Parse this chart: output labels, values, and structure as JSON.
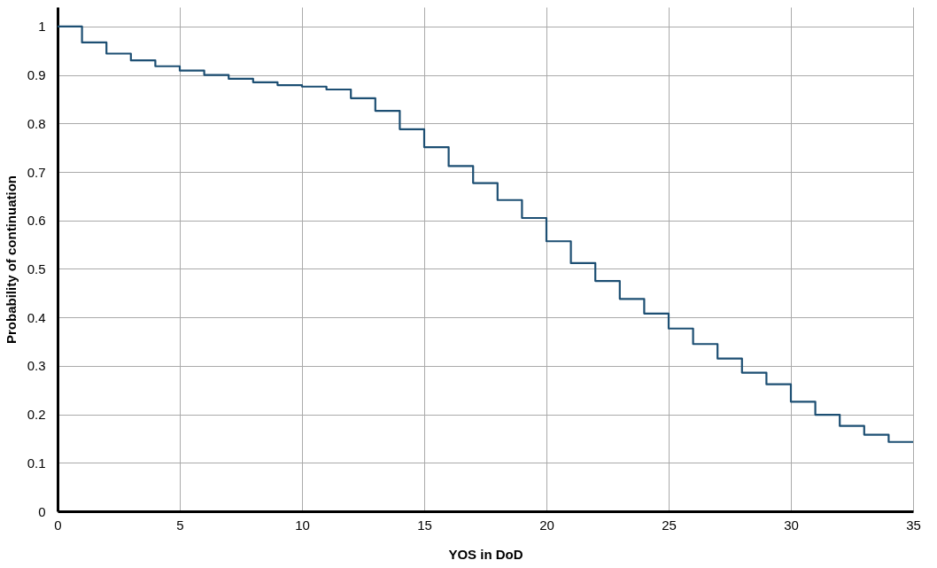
{
  "chart_data": {
    "type": "step",
    "xlabel": "YOS in DoD",
    "ylabel": "Probability of continuation",
    "x": [
      0,
      1,
      2,
      3,
      4,
      5,
      6,
      7,
      8,
      9,
      10,
      11,
      12,
      13,
      14,
      15,
      16,
      17,
      18,
      19,
      20,
      21,
      22,
      23,
      24,
      25,
      26,
      27,
      28,
      29,
      30,
      31,
      32,
      33,
      34,
      35
    ],
    "series": [
      {
        "color": "#1d4f73",
        "values": [
          1.0,
          0.967,
          0.944,
          0.93,
          0.918,
          0.909,
          0.9,
          0.892,
          0.885,
          0.879,
          0.876,
          0.87,
          0.852,
          0.826,
          0.788,
          0.751,
          0.712,
          0.677,
          0.642,
          0.605,
          0.557,
          0.512,
          0.475,
          0.438,
          0.408,
          0.377,
          0.345,
          0.315,
          0.286,
          0.262,
          0.226,
          0.199,
          0.176,
          0.158,
          0.143,
          0.143
        ]
      }
    ],
    "xlim": [
      0,
      35
    ],
    "xticks": [
      0,
      5,
      10,
      15,
      20,
      25,
      30,
      35
    ],
    "ylim": [
      0,
      1.04
    ],
    "yticks": [
      0,
      0.1,
      0.2,
      0.3,
      0.4,
      0.5,
      0.6,
      0.7,
      0.8,
      0.9,
      1
    ],
    "grid": true,
    "marker": "none",
    "line_style": "solid"
  }
}
